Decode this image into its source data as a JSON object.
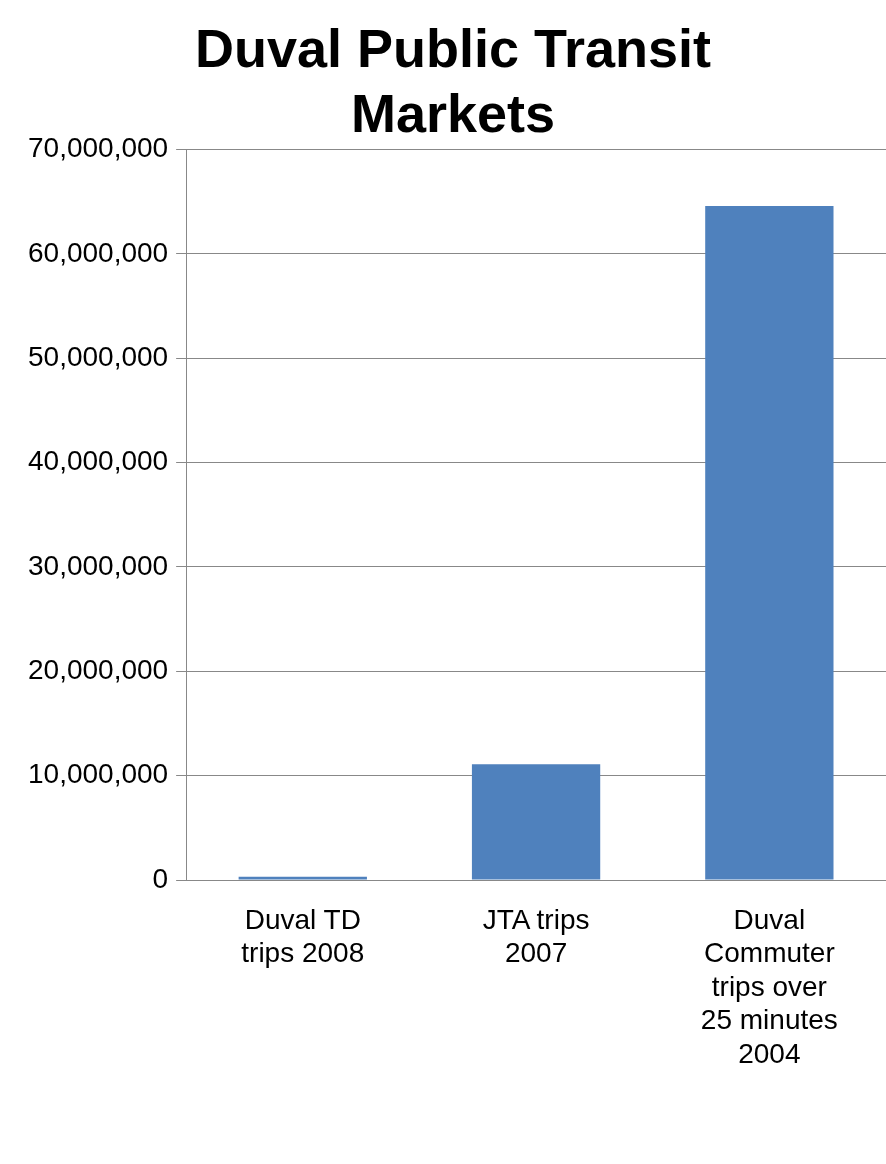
{
  "chart_data": {
    "type": "bar",
    "title": "Duval Public Transit Markets",
    "categories": [
      "Duval TD trips 2008",
      "JTA trips 2007",
      "Duval Commuter trips over 25 minutes 2004"
    ],
    "values": [
      300000,
      11100000,
      64600000
    ],
    "color": "#4f81bd",
    "ylim": [
      0,
      70000000
    ],
    "yticks": [
      0,
      {
        "value": 10000000,
        "label": "10,000,000"
      },
      {
        "value": 20000000,
        "label": "20,000,000"
      },
      {
        "value": 30000000,
        "label": "30,000,000"
      },
      {
        "value": 40000000,
        "label": "40,000,000"
      },
      {
        "value": 50000000,
        "label": "50,000,000"
      },
      {
        "value": 60000000,
        "label": "60,000,000"
      },
      {
        "value": 70000000,
        "label": "70,000,000"
      }
    ],
    "grid": "y",
    "legend": false
  }
}
